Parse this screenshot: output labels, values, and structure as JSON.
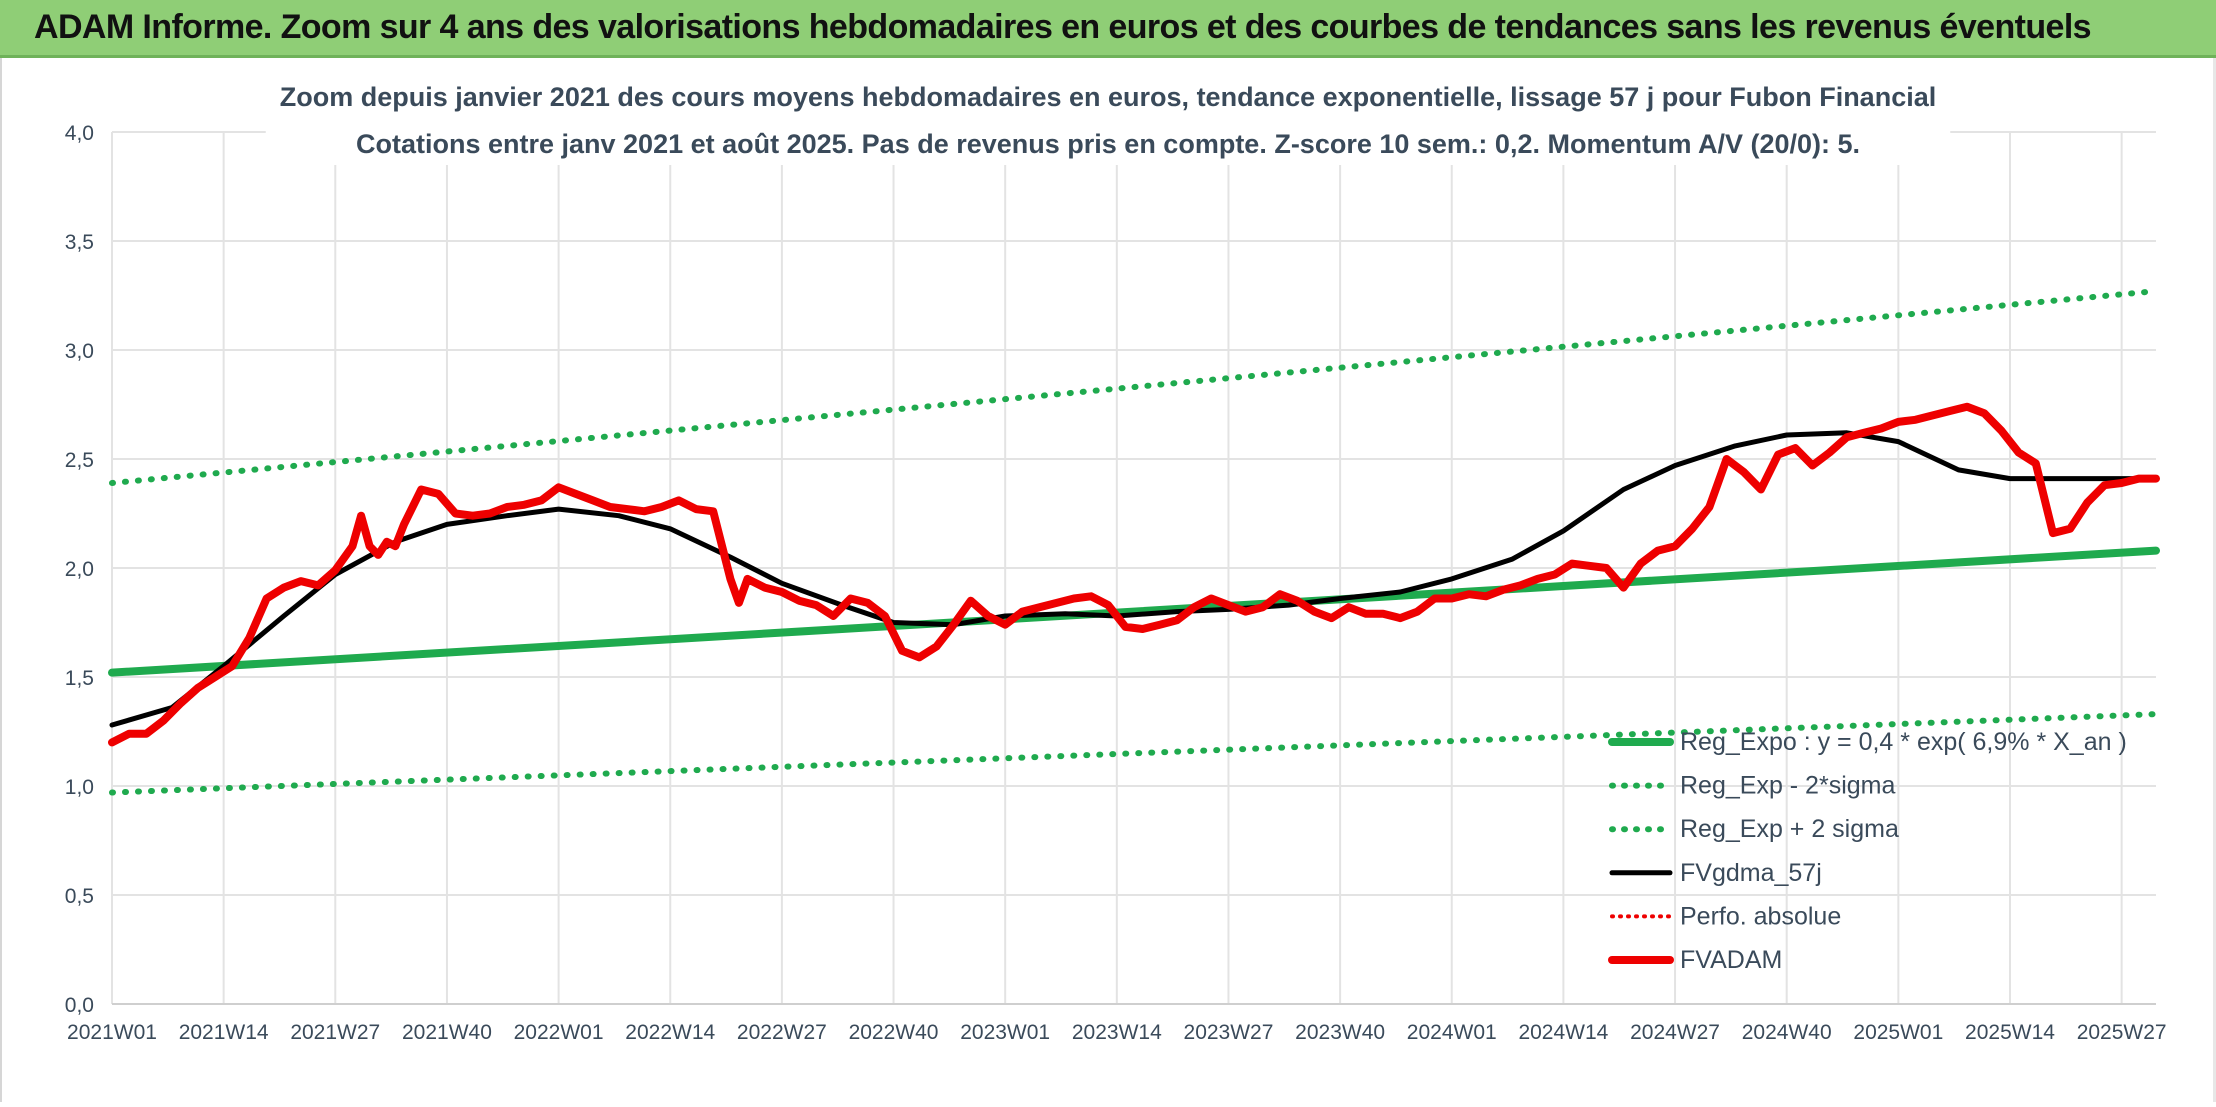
{
  "banner": {
    "title": "ADAM Informe. Zoom sur 4 ans des valorisations hebdomadaires en euros et des courbes de tendances sans les revenus éventuels"
  },
  "colors": {
    "banner_bg": "#8fce76",
    "regression": "#1faa4e",
    "sigma_bands": "#1faa4e",
    "smoothed": "#000000",
    "price": "#ee0000",
    "perf": "#ee0000",
    "grid": "#e3e3e3",
    "text": "#3a4a5a"
  },
  "chart_data": {
    "type": "line",
    "title": "Zoom depuis janvier 2021 des cours moyens hebdomadaires en euros, tendance exponentielle, lissage 57 j pour Fubon Financial",
    "subtitle": "Cotations entre janv 2021 et août 2025. Pas de revenus pris en compte. Z-score 10 sem.: 0,2. Momentum A/V (20/0): 5.",
    "xlabel": "",
    "ylabel": "",
    "ylim": [
      0,
      4
    ],
    "yticks": [
      "0,0",
      "0,5",
      "1,0",
      "1,5",
      "2,0",
      "2,5",
      "3,0",
      "3,5",
      "4,0"
    ],
    "x_tick_labels": [
      "2021W01",
      "2021W14",
      "2021W27",
      "2021W40",
      "2022W01",
      "2022W14",
      "2022W27",
      "2022W40",
      "2023W01",
      "2023W14",
      "2023W27",
      "2023W40",
      "2024W01",
      "2024W14",
      "2024W27",
      "2024W40",
      "2025W01",
      "2025W14",
      "2025W27"
    ],
    "x_week_range": [
      0,
      238
    ],
    "grid": true,
    "legend_position": "bottom-right",
    "legend": [
      {
        "label": "Reg_Expo : y = 0,4 * exp( 6,9% *  X_an )",
        "style": "solid-thick-green"
      },
      {
        "label": "Reg_Exp - 2*sigma",
        "style": "dotted-green"
      },
      {
        "label": "Reg_Exp + 2 sigma",
        "style": "dotted-green"
      },
      {
        "label": "FVgdma_57j",
        "style": "solid-black"
      },
      {
        "label": "Perfo. absolue",
        "style": "dotted-red"
      },
      {
        "label": "FVADAM",
        "style": "solid-thick-red"
      }
    ],
    "series": [
      {
        "name": "Reg_Expo : y = 0,4 * exp( 6,9% *  X_an )",
        "x": [
          0,
          238
        ],
        "values": [
          1.52,
          2.08
        ]
      },
      {
        "name": "Reg_Exp - 2*sigma",
        "x": [
          0,
          238
        ],
        "values": [
          0.97,
          1.33
        ]
      },
      {
        "name": "Reg_Exp + 2 sigma",
        "x": [
          0,
          238
        ],
        "values": [
          2.39,
          3.27
        ]
      },
      {
        "name": "FVgdma_57j",
        "x": [
          0,
          7,
          13,
          20,
          26,
          33,
          39,
          46,
          52,
          59,
          65,
          72,
          78,
          85,
          91,
          98,
          104,
          111,
          117,
          124,
          130,
          137,
          143,
          150,
          156,
          163,
          169,
          176,
          182,
          189,
          195,
          202,
          208,
          215,
          221,
          228,
          234,
          238
        ],
        "values": [
          1.28,
          1.36,
          1.55,
          1.78,
          1.97,
          2.12,
          2.2,
          2.24,
          2.27,
          2.24,
          2.18,
          2.05,
          1.93,
          1.83,
          1.75,
          1.74,
          1.78,
          1.79,
          1.78,
          1.8,
          1.81,
          1.83,
          1.86,
          1.89,
          1.95,
          2.04,
          2.17,
          2.36,
          2.47,
          2.56,
          2.61,
          2.62,
          2.58,
          2.45,
          2.41,
          2.41,
          2.41,
          2.41
        ]
      },
      {
        "name": "FVADAM",
        "x": [
          0,
          2,
          4,
          6,
          8,
          10,
          12,
          14,
          16,
          18,
          20,
          22,
          24,
          26,
          28,
          29,
          30,
          31,
          32,
          33,
          34,
          36,
          38,
          40,
          42,
          44,
          46,
          48,
          50,
          52,
          54,
          56,
          58,
          60,
          62,
          64,
          66,
          68,
          70,
          72,
          73,
          74,
          76,
          78,
          80,
          82,
          84,
          86,
          88,
          90,
          92,
          94,
          96,
          98,
          100,
          102,
          104,
          106,
          108,
          110,
          112,
          114,
          116,
          118,
          120,
          122,
          124,
          126,
          128,
          130,
          132,
          134,
          136,
          138,
          140,
          142,
          144,
          146,
          148,
          150,
          152,
          154,
          156,
          158,
          160,
          162,
          164,
          166,
          168,
          170,
          172,
          174,
          176,
          178,
          180,
          182,
          184,
          186,
          188,
          190,
          192,
          194,
          196,
          198,
          200,
          202,
          204,
          206,
          208,
          210,
          212,
          214,
          216,
          218,
          220,
          222,
          224,
          226,
          228,
          230,
          232,
          234,
          236,
          238
        ],
        "values": [
          1.2,
          1.24,
          1.24,
          1.3,
          1.38,
          1.45,
          1.5,
          1.55,
          1.68,
          1.86,
          1.91,
          1.94,
          1.92,
          1.99,
          2.1,
          2.24,
          2.1,
          2.06,
          2.12,
          2.1,
          2.2,
          2.36,
          2.34,
          2.25,
          2.24,
          2.25,
          2.28,
          2.29,
          2.31,
          2.37,
          2.34,
          2.31,
          2.28,
          2.27,
          2.26,
          2.28,
          2.31,
          2.27,
          2.26,
          1.95,
          1.84,
          1.95,
          1.91,
          1.89,
          1.85,
          1.83,
          1.78,
          1.86,
          1.84,
          1.78,
          1.62,
          1.59,
          1.64,
          1.74,
          1.85,
          1.78,
          1.74,
          1.8,
          1.82,
          1.84,
          1.86,
          1.87,
          1.83,
          1.73,
          1.72,
          1.74,
          1.76,
          1.82,
          1.86,
          1.83,
          1.8,
          1.82,
          1.88,
          1.85,
          1.8,
          1.77,
          1.82,
          1.79,
          1.79,
          1.77,
          1.8,
          1.86,
          1.86,
          1.88,
          1.87,
          1.9,
          1.92,
          1.95,
          1.97,
          2.02,
          2.01,
          2.0,
          1.91,
          2.02,
          2.08,
          2.1,
          2.18,
          2.28,
          2.5,
          2.44,
          2.36,
          2.52,
          2.55,
          2.47,
          2.53,
          2.6,
          2.62,
          2.64,
          2.67,
          2.68,
          2.7,
          2.72,
          2.74,
          2.71,
          2.63,
          2.53,
          2.48,
          2.16,
          2.18,
          2.3,
          2.38,
          2.39,
          2.41,
          2.41
        ]
      }
    ]
  }
}
